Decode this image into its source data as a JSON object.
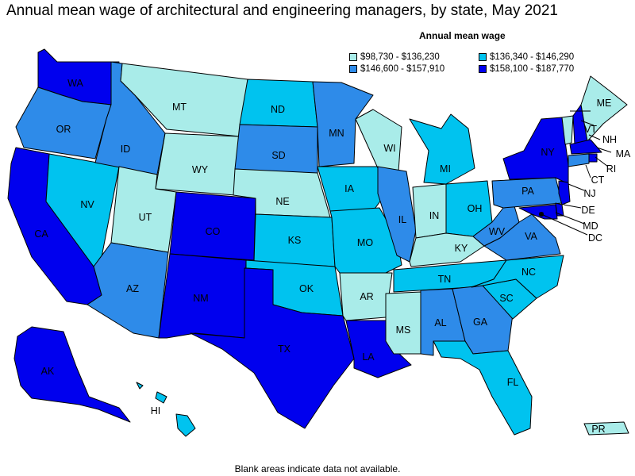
{
  "title": "Annual mean wage of architectural and engineering managers, by state, May 2021",
  "legend": {
    "title": "Annual mean wage",
    "items": [
      {
        "label": "$98,730 - $136,230",
        "color": "#a9ece9"
      },
      {
        "label": "$136,340 - $146,290",
        "color": "#00c3ef"
      },
      {
        "label": "$146,600 - $157,910",
        "color": "#2e8be9"
      },
      {
        "label": "$158,100 - $187,770",
        "color": "#0000ee"
      }
    ]
  },
  "footnote": "Blank areas indicate data not available.",
  "states": [
    {
      "code": "WA",
      "label": "WA",
      "tier": 3
    },
    {
      "code": "OR",
      "label": "OR",
      "tier": 2
    },
    {
      "code": "CA",
      "label": "CA",
      "tier": 3
    },
    {
      "code": "NV",
      "label": "NV",
      "tier": 1
    },
    {
      "code": "ID",
      "label": "ID",
      "tier": 2
    },
    {
      "code": "MT",
      "label": "MT",
      "tier": 0
    },
    {
      "code": "WY",
      "label": "WY",
      "tier": 0
    },
    {
      "code": "UT",
      "label": "UT",
      "tier": 0
    },
    {
      "code": "AZ",
      "label": "AZ",
      "tier": 2
    },
    {
      "code": "CO",
      "label": "CO",
      "tier": 3
    },
    {
      "code": "NM",
      "label": "NM",
      "tier": 3
    },
    {
      "code": "ND",
      "label": "ND",
      "tier": 1
    },
    {
      "code": "SD",
      "label": "SD",
      "tier": 2
    },
    {
      "code": "NE",
      "label": "NE",
      "tier": 0
    },
    {
      "code": "KS",
      "label": "KS",
      "tier": 1
    },
    {
      "code": "OK",
      "label": "OK",
      "tier": 1
    },
    {
      "code": "TX",
      "label": "TX",
      "tier": 3
    },
    {
      "code": "MN",
      "label": "MN",
      "tier": 2
    },
    {
      "code": "IA",
      "label": "IA",
      "tier": 1
    },
    {
      "code": "MO",
      "label": "MO",
      "tier": 1
    },
    {
      "code": "AR",
      "label": "AR",
      "tier": 0
    },
    {
      "code": "LA",
      "label": "LA",
      "tier": 3
    },
    {
      "code": "WI",
      "label": "WI",
      "tier": 0
    },
    {
      "code": "IL",
      "label": "IL",
      "tier": 2
    },
    {
      "code": "MI",
      "label": "MI",
      "tier": 1
    },
    {
      "code": "IN",
      "label": "IN",
      "tier": 0
    },
    {
      "code": "OH",
      "label": "OH",
      "tier": 1
    },
    {
      "code": "KY",
      "label": "KY",
      "tier": 0
    },
    {
      "code": "TN",
      "label": "TN",
      "tier": 1
    },
    {
      "code": "MS",
      "label": "MS",
      "tier": 0
    },
    {
      "code": "AL",
      "label": "AL",
      "tier": 2
    },
    {
      "code": "GA",
      "label": "GA",
      "tier": 2
    },
    {
      "code": "FL",
      "label": "FL",
      "tier": 1
    },
    {
      "code": "SC",
      "label": "SC",
      "tier": 1
    },
    {
      "code": "NC",
      "label": "NC",
      "tier": 1
    },
    {
      "code": "VA",
      "label": "VA",
      "tier": 2
    },
    {
      "code": "WV",
      "label": "WV",
      "tier": 2
    },
    {
      "code": "PA",
      "label": "PA",
      "tier": 2
    },
    {
      "code": "NY",
      "label": "NY",
      "tier": 3
    },
    {
      "code": "VT",
      "label": "VT",
      "tier": 0
    },
    {
      "code": "NH",
      "label": "NH",
      "tier": 3
    },
    {
      "code": "ME",
      "label": "ME",
      "tier": 0
    },
    {
      "code": "MA",
      "label": "MA",
      "tier": 3
    },
    {
      "code": "RI",
      "label": "RI",
      "tier": 3
    },
    {
      "code": "CT",
      "label": "CT",
      "tier": 2
    },
    {
      "code": "NJ",
      "label": "NJ",
      "tier": 3
    },
    {
      "code": "DE",
      "label": "DE",
      "tier": 3
    },
    {
      "code": "MD",
      "label": "MD",
      "tier": 3
    },
    {
      "code": "DC",
      "label": "DC",
      "tier": 3
    },
    {
      "code": "AK",
      "label": "AK",
      "tier": 3
    },
    {
      "code": "HI",
      "label": "HI",
      "tier": 1
    },
    {
      "code": "PR",
      "label": "PR",
      "tier": 0
    }
  ]
}
